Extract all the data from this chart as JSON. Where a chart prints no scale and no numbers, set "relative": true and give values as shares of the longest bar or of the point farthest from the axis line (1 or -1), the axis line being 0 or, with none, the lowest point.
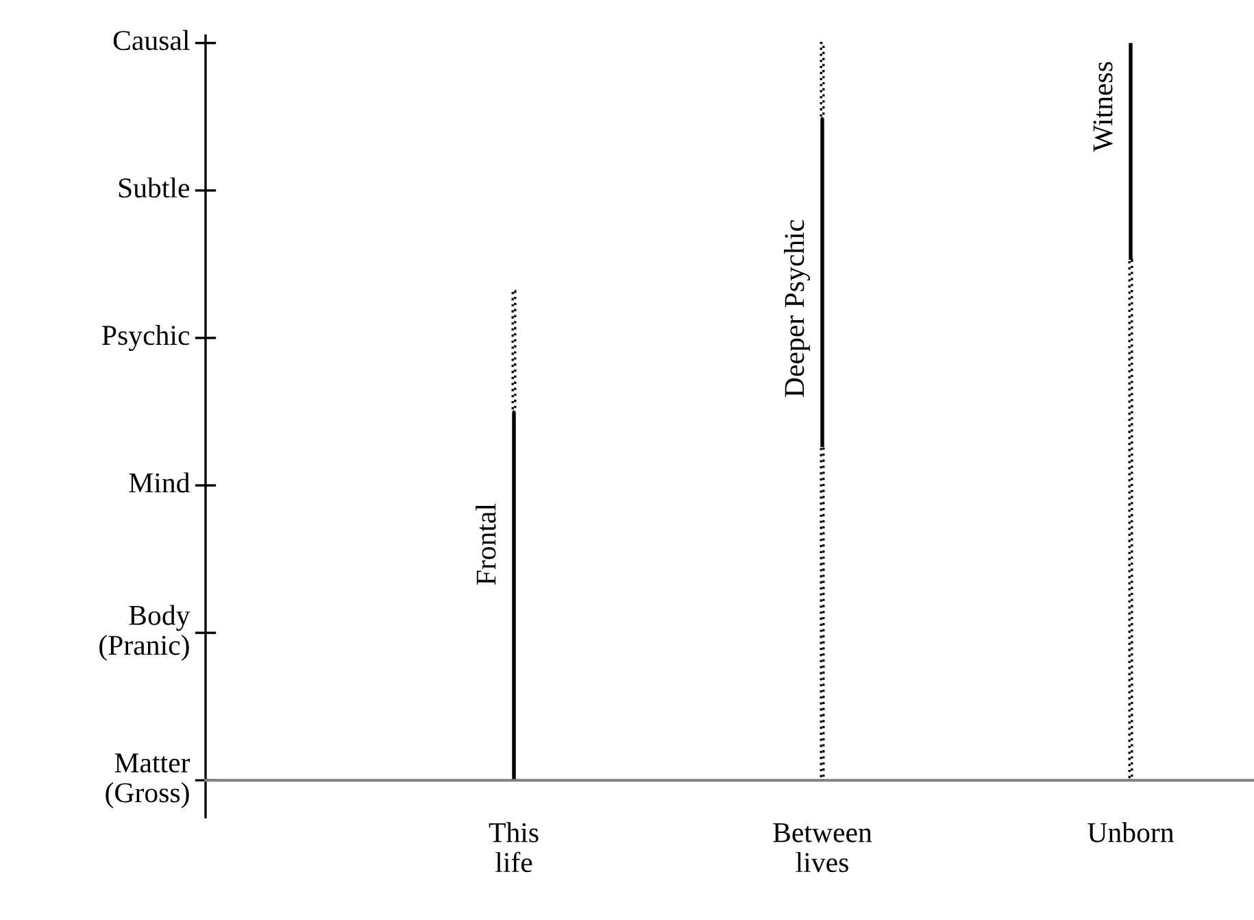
{
  "chart_data": {
    "type": "bar",
    "relative": true,
    "stacked": true,
    "categories": [
      "This\nlife",
      "Between\nlives",
      "Unborn"
    ],
    "series": [
      {
        "color": "#000000",
        "line_style": "dotted",
        "values": [
          null,
          0.452,
          0.706
        ]
      },
      {
        "color": "#000000",
        "line_style": "solid",
        "values": [
          0.5,
          0.446,
          0.294
        ]
      },
      {
        "color": "#000000",
        "line_style": "dotted",
        "values": [
          0.164,
          0.102,
          null
        ]
      }
    ],
    "annotations": [
      "Matter\n(Gross)",
      "Body\n(Pranic)",
      "Mind",
      "Psychic",
      "Subtle",
      "Causal",
      {
        "text": "Frontal",
        "x": "This\nlife",
        "y": 0.32
      },
      {
        "text": "Deeper Psychic",
        "x": "Between\nlives",
        "y": 0.64
      },
      {
        "text": "Witness",
        "x": "Unborn",
        "y": 0.914
      }
    ],
    "grid": false,
    "legend": false
  }
}
